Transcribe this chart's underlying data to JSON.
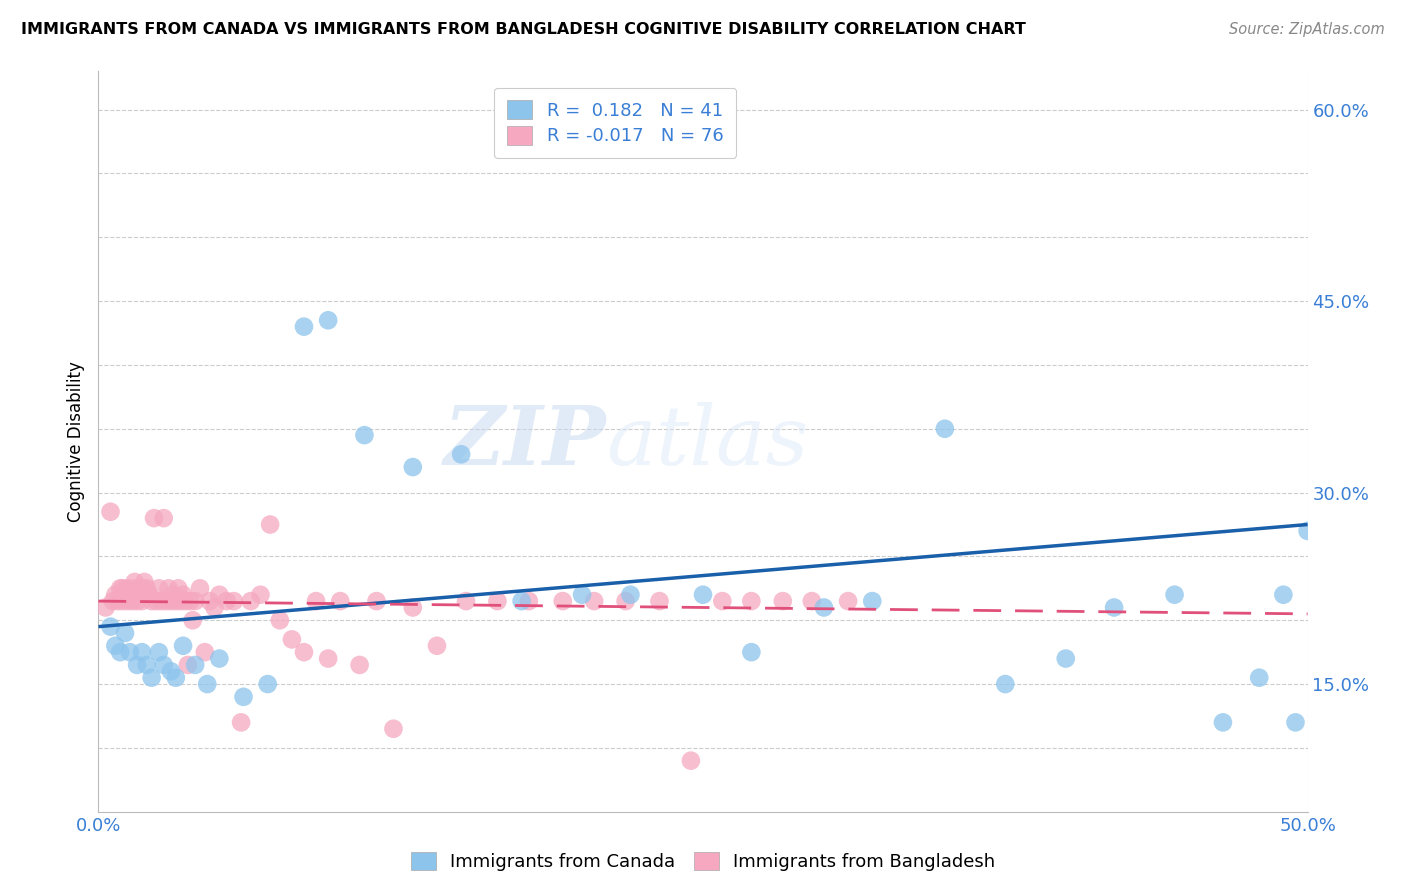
{
  "title": "IMMIGRANTS FROM CANADA VS IMMIGRANTS FROM BANGLADESH COGNITIVE DISABILITY CORRELATION CHART",
  "source": "Source: ZipAtlas.com",
  "ylabel": "Cognitive Disability",
  "xlim": [
    0.0,
    0.5
  ],
  "ylim": [
    0.05,
    0.63
  ],
  "canada_R": 0.182,
  "canada_N": 41,
  "bangladesh_R": -0.017,
  "bangladesh_N": 76,
  "canada_color": "#8DC4EC",
  "bangladesh_color": "#F5A8C0",
  "canada_line_color": "#1a5faa",
  "bangladesh_line_color": "#e0507a",
  "watermark_zip": "ZIP",
  "watermark_atlas": "atlas",
  "legend_label_canada": "Immigrants from Canada",
  "legend_label_bangladesh": "Immigrants from Bangladesh",
  "canada_x": [
    0.005,
    0.007,
    0.009,
    0.011,
    0.013,
    0.016,
    0.018,
    0.02,
    0.022,
    0.025,
    0.027,
    0.03,
    0.032,
    0.035,
    0.04,
    0.045,
    0.05,
    0.06,
    0.07,
    0.085,
    0.095,
    0.11,
    0.13,
    0.15,
    0.175,
    0.2,
    0.22,
    0.25,
    0.27,
    0.3,
    0.32,
    0.35,
    0.375,
    0.4,
    0.42,
    0.445,
    0.465,
    0.48,
    0.49,
    0.495,
    0.5
  ],
  "canada_y": [
    0.195,
    0.18,
    0.175,
    0.19,
    0.175,
    0.165,
    0.175,
    0.165,
    0.155,
    0.175,
    0.165,
    0.16,
    0.155,
    0.18,
    0.165,
    0.15,
    0.17,
    0.14,
    0.15,
    0.43,
    0.435,
    0.345,
    0.32,
    0.33,
    0.215,
    0.22,
    0.22,
    0.22,
    0.175,
    0.21,
    0.215,
    0.35,
    0.15,
    0.17,
    0.21,
    0.22,
    0.12,
    0.155,
    0.22,
    0.12,
    0.27
  ],
  "bangladesh_x": [
    0.003,
    0.005,
    0.006,
    0.007,
    0.008,
    0.009,
    0.01,
    0.01,
    0.011,
    0.012,
    0.012,
    0.013,
    0.014,
    0.015,
    0.015,
    0.016,
    0.017,
    0.018,
    0.018,
    0.019,
    0.02,
    0.021,
    0.022,
    0.023,
    0.024,
    0.025,
    0.026,
    0.027,
    0.028,
    0.029,
    0.03,
    0.031,
    0.032,
    0.033,
    0.034,
    0.035,
    0.036,
    0.037,
    0.038,
    0.039,
    0.04,
    0.042,
    0.044,
    0.046,
    0.048,
    0.05,
    0.053,
    0.056,
    0.059,
    0.063,
    0.067,
    0.071,
    0.075,
    0.08,
    0.085,
    0.09,
    0.095,
    0.1,
    0.108,
    0.115,
    0.122,
    0.13,
    0.14,
    0.152,
    0.165,
    0.178,
    0.192,
    0.205,
    0.218,
    0.232,
    0.245,
    0.258,
    0.27,
    0.283,
    0.295,
    0.31
  ],
  "bangladesh_y": [
    0.21,
    0.285,
    0.215,
    0.22,
    0.215,
    0.225,
    0.215,
    0.225,
    0.22,
    0.215,
    0.225,
    0.22,
    0.215,
    0.225,
    0.23,
    0.215,
    0.22,
    0.225,
    0.215,
    0.23,
    0.225,
    0.22,
    0.215,
    0.28,
    0.215,
    0.225,
    0.215,
    0.28,
    0.215,
    0.225,
    0.215,
    0.22,
    0.215,
    0.225,
    0.215,
    0.22,
    0.215,
    0.165,
    0.215,
    0.2,
    0.215,
    0.225,
    0.175,
    0.215,
    0.21,
    0.22,
    0.215,
    0.215,
    0.12,
    0.215,
    0.22,
    0.275,
    0.2,
    0.185,
    0.175,
    0.215,
    0.17,
    0.215,
    0.165,
    0.215,
    0.115,
    0.21,
    0.18,
    0.215,
    0.215,
    0.215,
    0.215,
    0.215,
    0.215,
    0.215,
    0.09,
    0.215,
    0.215,
    0.215,
    0.215,
    0.215
  ],
  "canada_line_y0": 0.195,
  "canada_line_y1": 0.275,
  "bangladesh_line_y0": 0.215,
  "bangladesh_line_y1": 0.205
}
